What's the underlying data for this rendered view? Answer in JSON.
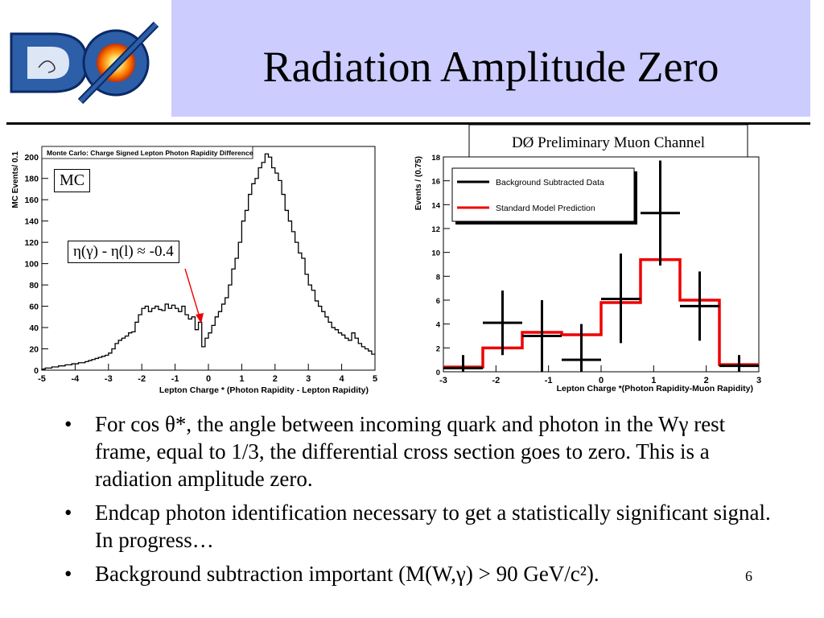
{
  "slide": {
    "title": "Radiation Amplitude Zero",
    "page_number": "6",
    "logo_text": "DØ",
    "bullets": [
      "For cos θ*, the angle between incoming quark and photon in the Wγ rest frame, equal to 1/3, the differential cross section goes to zero.  This is a radiation amplitude zero.",
      "Endcap photon identification necessary to get a statistically significant signal.  In progress…",
      "Background subtraction important (M(W,γ) > 90 GeV/c²)."
    ],
    "bullet_marker": "•"
  },
  "colors": {
    "title_band": "#ccccff",
    "sm_line": "#ee0000",
    "data_line": "#000000",
    "mc_line": "#000000",
    "arrow": "#ee0000"
  },
  "chart_data": [
    {
      "type": "bar",
      "style": "step-histogram",
      "title": "Monte Carlo: Charge Signed Lepton Photon Rapidity Difference",
      "xlabel": "Lepton Charge * (Photon Rapidity - Lepton Rapidity)",
      "ylabel": "MC Events/ 0.1",
      "xlim": [
        -5,
        5
      ],
      "ylim": [
        0,
        210
      ],
      "xticks": [
        -5,
        -4,
        -3,
        -2,
        -1,
        0,
        1,
        2,
        3,
        4,
        5
      ],
      "yticks": [
        0,
        20,
        40,
        60,
        80,
        100,
        120,
        140,
        160,
        180,
        200
      ],
      "bin_width": 0.1,
      "x_start": -5,
      "values": [
        1,
        2,
        2,
        3,
        3,
        4,
        4,
        5,
        5,
        6,
        6,
        7,
        7,
        8,
        9,
        10,
        11,
        12,
        13,
        14,
        16,
        20,
        25,
        28,
        30,
        32,
        35,
        36,
        45,
        52,
        58,
        60,
        55,
        58,
        60,
        57,
        56,
        62,
        58,
        61,
        58,
        55,
        60,
        52,
        48,
        50,
        38,
        45,
        22,
        30,
        35,
        42,
        50,
        55,
        62,
        68,
        80,
        95,
        105,
        120,
        140,
        150,
        165,
        175,
        180,
        190,
        195,
        203,
        200,
        190,
        185,
        178,
        165,
        150,
        140,
        130,
        120,
        110,
        105,
        90,
        80,
        75,
        65,
        60,
        55,
        50,
        45,
        40,
        38,
        35,
        33,
        30,
        28,
        35,
        30,
        25,
        22,
        20,
        18,
        15
      ],
      "annotations": [
        "MC",
        "η(γ) - η(l) ≈ -0.4"
      ]
    },
    {
      "type": "scatter",
      "style": "data-with-errors-and-step-prediction",
      "title": "DØ Preliminary Muon Channel",
      "xlabel": "Lepton Charge *(Photon Rapidity-Muon Rapidity)",
      "ylabel": "Events / (0.75)",
      "xlim": [
        -3,
        3
      ],
      "ylim": [
        0,
        18
      ],
      "xticks": [
        -3,
        -2,
        -1,
        0,
        1,
        2,
        3
      ],
      "yticks": [
        0,
        2,
        4,
        6,
        8,
        10,
        12,
        14,
        16,
        18
      ],
      "legend": [
        "Background Subtracted Data",
        "Standard Model Prediction"
      ],
      "legend_position": "top-left",
      "bin_edges": [
        -3,
        -2.25,
        -1.5,
        -0.75,
        0,
        0.75,
        1.5,
        2.25,
        3
      ],
      "series": [
        {
          "name": "Background Subtracted Data",
          "x": [
            -2.625,
            -1.875,
            -1.125,
            -0.375,
            0.375,
            1.125,
            1.875,
            2.625
          ],
          "y": [
            0.3,
            4.1,
            3.0,
            1.0,
            6.1,
            13.3,
            5.5,
            0.5
          ],
          "err_low": [
            0.3,
            2.7,
            3.0,
            1.0,
            3.7,
            4.4,
            2.9,
            0.5
          ],
          "err_high": [
            1.1,
            2.7,
            3.0,
            3.0,
            3.8,
            4.4,
            2.9,
            0.9
          ]
        },
        {
          "name": "Standard Model Prediction",
          "values": [
            0.4,
            2.0,
            3.3,
            3.1,
            5.8,
            9.4,
            6.0,
            0.6
          ]
        }
      ]
    }
  ]
}
